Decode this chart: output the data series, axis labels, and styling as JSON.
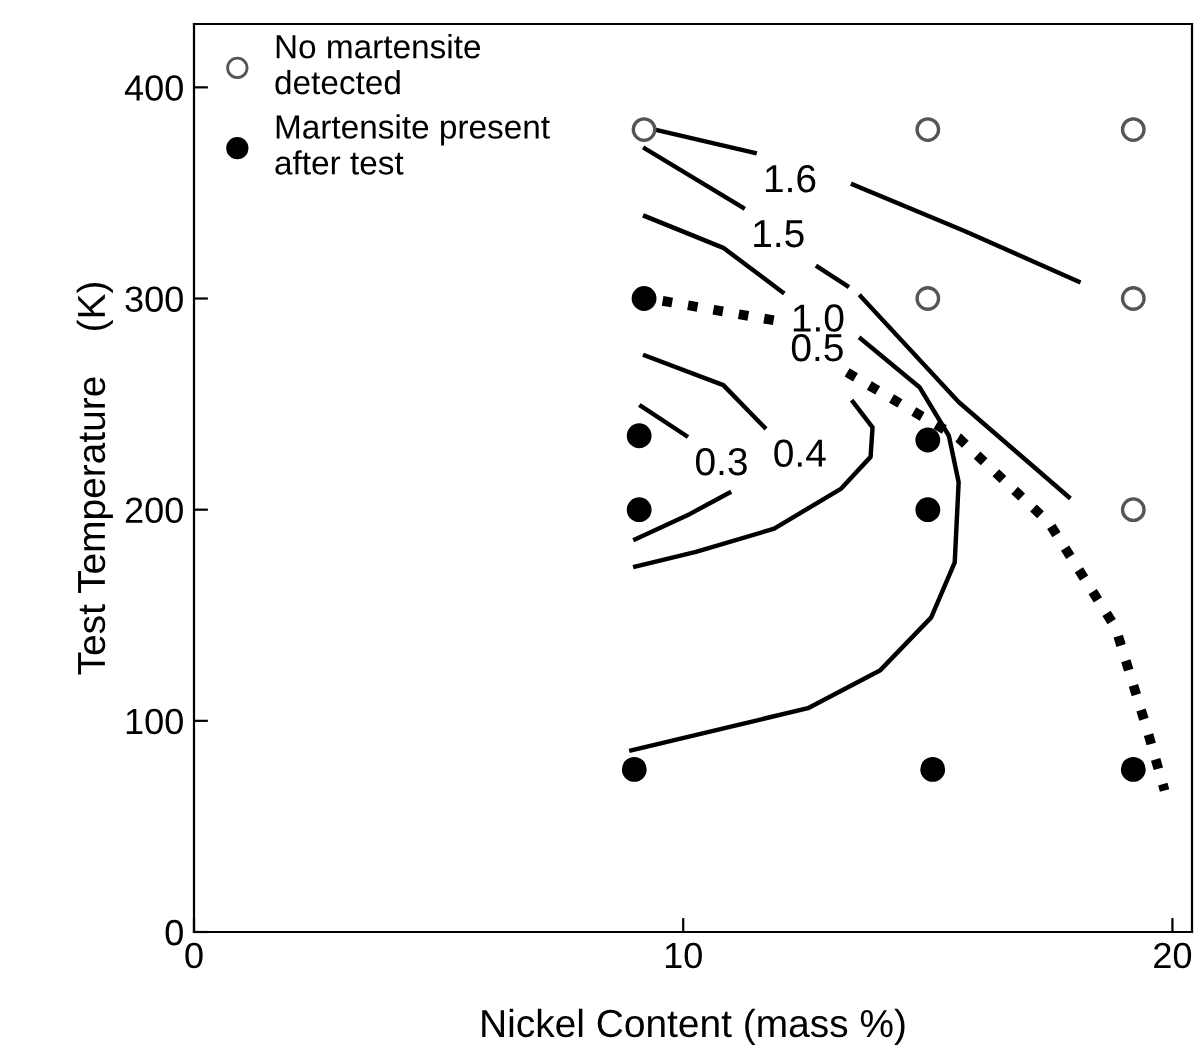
{
  "chart_data": {
    "type": "line",
    "xlabel": "Nickel Content (mass %)",
    "ylabel": "Test Temperature    (K)",
    "xlim": [
      0,
      20.4
    ],
    "ylim": [
      0,
      430
    ],
    "xticks": [
      0,
      10,
      20
    ],
    "yticks": [
      0,
      100,
      200,
      300,
      400
    ],
    "grid": false,
    "legend": "top left",
    "line_style": "solid",
    "series": [
      {
        "type": "scatter",
        "name": "No martensite\ndetected",
        "color": "#ffffff",
        "marker": "circle",
        "x": [
          9.2,
          15.0,
          19.2,
          15.0,
          19.2,
          19.2
        ],
        "values": [
          380,
          380,
          380,
          300,
          300,
          200
        ]
      },
      {
        "type": "scatter",
        "name": "Martensite present\nafter test",
        "color": "#000000",
        "marker": "circle",
        "x": [
          9.2,
          9.1,
          9.1,
          15.0,
          15.0,
          9.0,
          15.1,
          19.2
        ],
        "values": [
          300,
          235,
          200,
          233,
          200,
          77,
          77,
          77
        ]
      },
      {
        "name": "1.6",
        "color": "#000000",
        "x": [
          9.42,
          11.46,
          null,
          13.47,
          15.75,
          18.08
        ],
        "values": [
          380,
          369,
          null,
          354,
          332,
          308
        ]
      },
      {
        "name": "1.5",
        "color": "#000000",
        "x": [
          9.22,
          11.22,
          null,
          12.75,
          13.35,
          null,
          13.63,
          15.63,
          17.88
        ],
        "values": [
          371,
          343,
          null,
          315,
          306,
          null,
          301,
          251,
          206
        ]
      },
      {
        "name": "1.0",
        "color": "#000000",
        "x": [
          9.22,
          10.82,
          12.03,
          null,
          13.63,
          14.83,
          15.43,
          15.63,
          15.55,
          15.07,
          14.03,
          12.55,
          8.94
        ],
        "values": [
          339,
          324,
          303,
          null,
          281,
          258,
          235,
          213,
          175,
          149,
          124,
          106,
          86
        ]
      },
      {
        "name": "0.5",
        "color": "#000000",
        "line_style": "dotted",
        "x": [
          9.06,
          12.02,
          null,
          13.35,
          15.63,
          17.47,
          18.84,
          19.48,
          19.84
        ],
        "values": [
          301,
          289,
          null,
          265,
          234,
          194,
          144,
          96,
          67
        ]
      },
      {
        "name": "0.4",
        "color": "#000000",
        "x": [
          9.22,
          10.82,
          11.66,
          null,
          13.47,
          13.87,
          13.83,
          13.23,
          11.86,
          10.26,
          9.02
        ],
        "values": [
          273,
          259,
          239,
          null,
          251,
          239,
          225,
          210,
          191,
          180,
          173
        ]
      },
      {
        "name": "0.3",
        "color": "#000000",
        "x": [
          9.14,
          10.06,
          null,
          10.94,
          10.14,
          9.02
        ],
        "values": [
          249,
          235,
          null,
          208,
          198,
          186
        ]
      }
    ]
  }
}
